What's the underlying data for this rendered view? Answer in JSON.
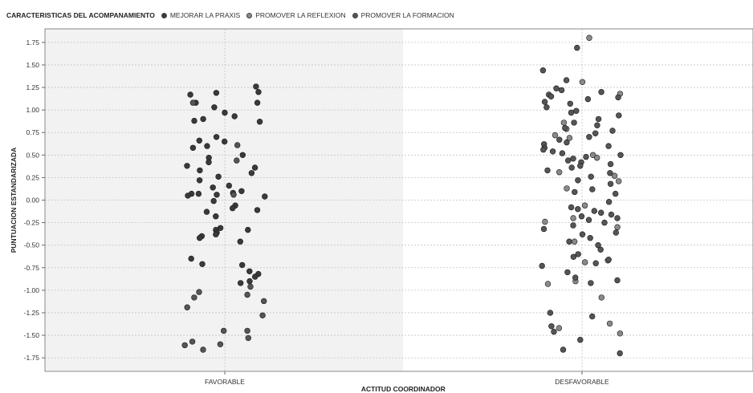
{
  "legend": {
    "title": "CARACTERISTICAS DEL ACOMPANAMIENTO",
    "items": [
      {
        "label": "MEJORAR LA PRAXIS",
        "color": "#3a3a3a"
      },
      {
        "label": "PROMOVER LA REFLEXION",
        "color": "#8a8a8a"
      },
      {
        "label": "PROMOVER LA FORMACION",
        "color": "#555555"
      }
    ]
  },
  "chart_data": {
    "type": "scatter",
    "xlabel": "ACTITUD COORDINADOR",
    "ylabel": "PUNTUACION ESTANDARIZADA",
    "categories": [
      "FAVORABLE",
      "DESFAVORABLE"
    ],
    "ylim": [
      -1.9,
      1.9
    ],
    "yticks": [
      1.75,
      1.5,
      1.25,
      1.0,
      0.75,
      0.5,
      0.25,
      0.0,
      -0.25,
      -0.5,
      -0.75,
      -1.0,
      -1.25,
      -1.5,
      -1.75
    ],
    "ytick_labels": [
      "1.75",
      "1.50",
      "1.25",
      "1.00",
      "0.75",
      "0.50",
      "0.25",
      "0.00",
      "-0.25",
      "-0.50",
      "-0.75",
      "-1.00",
      "-1.25",
      "-1.50",
      "-1.75"
    ],
    "grid": true,
    "legend_position": "top-left",
    "background": {
      "FAVORABLE": "#f2f2f2",
      "DESFAVORABLE": "#ffffff"
    },
    "series": [
      {
        "name": "MEJORAR LA PRAXIS",
        "color": "#3a3a3a",
        "points": [
          {
            "x": "FAVORABLE",
            "y": 1.26
          },
          {
            "x": "FAVORABLE",
            "y": 1.2
          },
          {
            "x": "FAVORABLE",
            "y": 1.17
          },
          {
            "x": "FAVORABLE",
            "y": 1.19
          },
          {
            "x": "FAVORABLE",
            "y": 1.08
          },
          {
            "x": "FAVORABLE",
            "y": 1.08
          },
          {
            "x": "FAVORABLE",
            "y": 1.03
          },
          {
            "x": "FAVORABLE",
            "y": 0.97
          },
          {
            "x": "FAVORABLE",
            "y": 0.93
          },
          {
            "x": "FAVORABLE",
            "y": 0.9
          },
          {
            "x": "FAVORABLE",
            "y": 0.88
          },
          {
            "x": "FAVORABLE",
            "y": 0.87
          },
          {
            "x": "FAVORABLE",
            "y": 0.7
          },
          {
            "x": "FAVORABLE",
            "y": 0.66
          },
          {
            "x": "FAVORABLE",
            "y": 0.65
          },
          {
            "x": "FAVORABLE",
            "y": 0.6
          },
          {
            "x": "FAVORABLE",
            "y": 0.58
          },
          {
            "x": "FAVORABLE",
            "y": 0.5
          },
          {
            "x": "FAVORABLE",
            "y": 0.47
          },
          {
            "x": "FAVORABLE",
            "y": 0.42
          },
          {
            "x": "FAVORABLE",
            "y": 0.38
          },
          {
            "x": "FAVORABLE",
            "y": 0.36
          },
          {
            "x": "FAVORABLE",
            "y": 0.33
          },
          {
            "x": "FAVORABLE",
            "y": 0.3
          },
          {
            "x": "FAVORABLE",
            "y": 0.26
          },
          {
            "x": "FAVORABLE",
            "y": 0.22
          },
          {
            "x": "FAVORABLE",
            "y": 0.16
          },
          {
            "x": "FAVORABLE",
            "y": 0.14
          },
          {
            "x": "FAVORABLE",
            "y": 0.1
          },
          {
            "x": "FAVORABLE",
            "y": 0.08
          },
          {
            "x": "FAVORABLE",
            "y": 0.07
          },
          {
            "x": "FAVORABLE",
            "y": 0.07
          },
          {
            "x": "FAVORABLE",
            "y": 0.06
          },
          {
            "x": "FAVORABLE",
            "y": 0.05
          },
          {
            "x": "FAVORABLE",
            "y": 0.04
          },
          {
            "x": "FAVORABLE",
            "y": -0.01
          },
          {
            "x": "FAVORABLE",
            "y": -0.06
          },
          {
            "x": "FAVORABLE",
            "y": -0.09
          },
          {
            "x": "FAVORABLE",
            "y": -0.11
          },
          {
            "x": "FAVORABLE",
            "y": -0.13
          },
          {
            "x": "FAVORABLE",
            "y": -0.18
          },
          {
            "x": "FAVORABLE",
            "y": -0.31
          },
          {
            "x": "FAVORABLE",
            "y": -0.33
          },
          {
            "x": "FAVORABLE",
            "y": -0.33
          },
          {
            "x": "FAVORABLE",
            "y": -0.36
          },
          {
            "x": "FAVORABLE",
            "y": -0.38
          },
          {
            "x": "FAVORABLE",
            "y": -0.4
          },
          {
            "x": "FAVORABLE",
            "y": -0.42
          },
          {
            "x": "FAVORABLE",
            "y": -0.46
          },
          {
            "x": "FAVORABLE",
            "y": -0.65
          },
          {
            "x": "FAVORABLE",
            "y": -0.71
          },
          {
            "x": "FAVORABLE",
            "y": -0.72
          },
          {
            "x": "FAVORABLE",
            "y": -0.79
          },
          {
            "x": "FAVORABLE",
            "y": -0.82
          },
          {
            "x": "FAVORABLE",
            "y": -0.85
          },
          {
            "x": "FAVORABLE",
            "y": -0.9
          },
          {
            "x": "FAVORABLE",
            "y": -0.92
          }
        ]
      },
      {
        "name": "PROMOVER LA REFLEXION",
        "color": "#8a8a8a",
        "points": [
          {
            "x": "DESFAVORABLE",
            "y": 1.8
          },
          {
            "x": "DESFAVORABLE",
            "y": 1.31
          },
          {
            "x": "DESFAVORABLE",
            "y": 1.18
          },
          {
            "x": "DESFAVORABLE",
            "y": 0.86
          },
          {
            "x": "DESFAVORABLE",
            "y": 0.79
          },
          {
            "x": "DESFAVORABLE",
            "y": 0.72
          },
          {
            "x": "DESFAVORABLE",
            "y": 0.69
          },
          {
            "x": "DESFAVORABLE",
            "y": 0.5
          },
          {
            "x": "DESFAVORABLE",
            "y": 0.47
          },
          {
            "x": "DESFAVORABLE",
            "y": 0.31
          },
          {
            "x": "DESFAVORABLE",
            "y": 0.27
          },
          {
            "x": "DESFAVORABLE",
            "y": 0.21
          },
          {
            "x": "DESFAVORABLE",
            "y": 0.13
          },
          {
            "x": "DESFAVORABLE",
            "y": -0.06
          },
          {
            "x": "DESFAVORABLE",
            "y": -0.2
          },
          {
            "x": "DESFAVORABLE",
            "y": -0.24
          },
          {
            "x": "DESFAVORABLE",
            "y": -0.3
          },
          {
            "x": "DESFAVORABLE",
            "y": -0.46
          },
          {
            "x": "DESFAVORABLE",
            "y": -0.67
          },
          {
            "x": "DESFAVORABLE",
            "y": -0.69
          },
          {
            "x": "DESFAVORABLE",
            "y": -0.9
          },
          {
            "x": "DESFAVORABLE",
            "y": -0.93
          },
          {
            "x": "DESFAVORABLE",
            "y": -1.08
          },
          {
            "x": "DESFAVORABLE",
            "y": -1.37
          },
          {
            "x": "DESFAVORABLE",
            "y": -1.42
          },
          {
            "x": "DESFAVORABLE",
            "y": -1.48
          }
        ]
      },
      {
        "name": "PROMOVER LA FORMACION",
        "color": "#555555",
        "points": [
          {
            "x": "FAVORABLE",
            "y": 1.08
          },
          {
            "x": "FAVORABLE",
            "y": 0.61
          },
          {
            "x": "FAVORABLE",
            "y": 0.44
          },
          {
            "x": "FAVORABLE",
            "y": 0.06
          },
          {
            "x": "FAVORABLE",
            "y": -0.96
          },
          {
            "x": "FAVORABLE",
            "y": -1.02
          },
          {
            "x": "FAVORABLE",
            "y": -1.05
          },
          {
            "x": "FAVORABLE",
            "y": -1.08
          },
          {
            "x": "FAVORABLE",
            "y": -1.12
          },
          {
            "x": "FAVORABLE",
            "y": -1.19
          },
          {
            "x": "FAVORABLE",
            "y": -1.28
          },
          {
            "x": "FAVORABLE",
            "y": -1.45
          },
          {
            "x": "FAVORABLE",
            "y": -1.45
          },
          {
            "x": "FAVORABLE",
            "y": -1.53
          },
          {
            "x": "FAVORABLE",
            "y": -1.57
          },
          {
            "x": "FAVORABLE",
            "y": -1.6
          },
          {
            "x": "FAVORABLE",
            "y": -1.61
          },
          {
            "x": "FAVORABLE",
            "y": -1.66
          },
          {
            "x": "DESFAVORABLE",
            "y": 1.69
          },
          {
            "x": "DESFAVORABLE",
            "y": 1.44
          },
          {
            "x": "DESFAVORABLE",
            "y": 1.33
          },
          {
            "x": "DESFAVORABLE",
            "y": 1.24
          },
          {
            "x": "DESFAVORABLE",
            "y": 1.22
          },
          {
            "x": "DESFAVORABLE",
            "y": 1.2
          },
          {
            "x": "DESFAVORABLE",
            "y": 1.17
          },
          {
            "x": "DESFAVORABLE",
            "y": 1.15
          },
          {
            "x": "DESFAVORABLE",
            "y": 1.14
          },
          {
            "x": "DESFAVORABLE",
            "y": 1.12
          },
          {
            "x": "DESFAVORABLE",
            "y": 1.09
          },
          {
            "x": "DESFAVORABLE",
            "y": 1.07
          },
          {
            "x": "DESFAVORABLE",
            "y": 1.03
          },
          {
            "x": "DESFAVORABLE",
            "y": 0.99
          },
          {
            "x": "DESFAVORABLE",
            "y": 0.97
          },
          {
            "x": "DESFAVORABLE",
            "y": 0.94
          },
          {
            "x": "DESFAVORABLE",
            "y": 0.9
          },
          {
            "x": "DESFAVORABLE",
            "y": 0.86
          },
          {
            "x": "DESFAVORABLE",
            "y": 0.83
          },
          {
            "x": "DESFAVORABLE",
            "y": 0.8
          },
          {
            "x": "DESFAVORABLE",
            "y": 0.77
          },
          {
            "x": "DESFAVORABLE",
            "y": 0.74
          },
          {
            "x": "DESFAVORABLE",
            "y": 0.7
          },
          {
            "x": "DESFAVORABLE",
            "y": 0.67
          },
          {
            "x": "DESFAVORABLE",
            "y": 0.64
          },
          {
            "x": "DESFAVORABLE",
            "y": 0.62
          },
          {
            "x": "DESFAVORABLE",
            "y": 0.6
          },
          {
            "x": "DESFAVORABLE",
            "y": 0.58
          },
          {
            "x": "DESFAVORABLE",
            "y": 0.56
          },
          {
            "x": "DESFAVORABLE",
            "y": 0.54
          },
          {
            "x": "DESFAVORABLE",
            "y": 0.52
          },
          {
            "x": "DESFAVORABLE",
            "y": 0.5
          },
          {
            "x": "DESFAVORABLE",
            "y": 0.48
          },
          {
            "x": "DESFAVORABLE",
            "y": 0.46
          },
          {
            "x": "DESFAVORABLE",
            "y": 0.44
          },
          {
            "x": "DESFAVORABLE",
            "y": 0.42
          },
          {
            "x": "DESFAVORABLE",
            "y": 0.4
          },
          {
            "x": "DESFAVORABLE",
            "y": 0.38
          },
          {
            "x": "DESFAVORABLE",
            "y": 0.36
          },
          {
            "x": "DESFAVORABLE",
            "y": 0.33
          },
          {
            "x": "DESFAVORABLE",
            "y": 0.3
          },
          {
            "x": "DESFAVORABLE",
            "y": 0.26
          },
          {
            "x": "DESFAVORABLE",
            "y": 0.22
          },
          {
            "x": "DESFAVORABLE",
            "y": 0.18
          },
          {
            "x": "DESFAVORABLE",
            "y": 0.12
          },
          {
            "x": "DESFAVORABLE",
            "y": 0.09
          },
          {
            "x": "DESFAVORABLE",
            "y": 0.07
          },
          {
            "x": "DESFAVORABLE",
            "y": -0.02
          },
          {
            "x": "DESFAVORABLE",
            "y": -0.08
          },
          {
            "x": "DESFAVORABLE",
            "y": -0.1
          },
          {
            "x": "DESFAVORABLE",
            "y": -0.12
          },
          {
            "x": "DESFAVORABLE",
            "y": -0.14
          },
          {
            "x": "DESFAVORABLE",
            "y": -0.16
          },
          {
            "x": "DESFAVORABLE",
            "y": -0.18
          },
          {
            "x": "DESFAVORABLE",
            "y": -0.2
          },
          {
            "x": "DESFAVORABLE",
            "y": -0.22
          },
          {
            "x": "DESFAVORABLE",
            "y": -0.25
          },
          {
            "x": "DESFAVORABLE",
            "y": -0.28
          },
          {
            "x": "DESFAVORABLE",
            "y": -0.32
          },
          {
            "x": "DESFAVORABLE",
            "y": -0.36
          },
          {
            "x": "DESFAVORABLE",
            "y": -0.38
          },
          {
            "x": "DESFAVORABLE",
            "y": -0.42
          },
          {
            "x": "DESFAVORABLE",
            "y": -0.46
          },
          {
            "x": "DESFAVORABLE",
            "y": -0.5
          },
          {
            "x": "DESFAVORABLE",
            "y": -0.55
          },
          {
            "x": "DESFAVORABLE",
            "y": -0.6
          },
          {
            "x": "DESFAVORABLE",
            "y": -0.63
          },
          {
            "x": "DESFAVORABLE",
            "y": -0.66
          },
          {
            "x": "DESFAVORABLE",
            "y": -0.7
          },
          {
            "x": "DESFAVORABLE",
            "y": -0.73
          },
          {
            "x": "DESFAVORABLE",
            "y": -0.8
          },
          {
            "x": "DESFAVORABLE",
            "y": -0.86
          },
          {
            "x": "DESFAVORABLE",
            "y": -0.89
          },
          {
            "x": "DESFAVORABLE",
            "y": -0.92
          },
          {
            "x": "DESFAVORABLE",
            "y": -1.25
          },
          {
            "x": "DESFAVORABLE",
            "y": -1.29
          },
          {
            "x": "DESFAVORABLE",
            "y": -1.4
          },
          {
            "x": "DESFAVORABLE",
            "y": -1.46
          },
          {
            "x": "DESFAVORABLE",
            "y": -1.55
          },
          {
            "x": "DESFAVORABLE",
            "y": -1.66
          },
          {
            "x": "DESFAVORABLE",
            "y": -1.7
          }
        ]
      }
    ]
  }
}
